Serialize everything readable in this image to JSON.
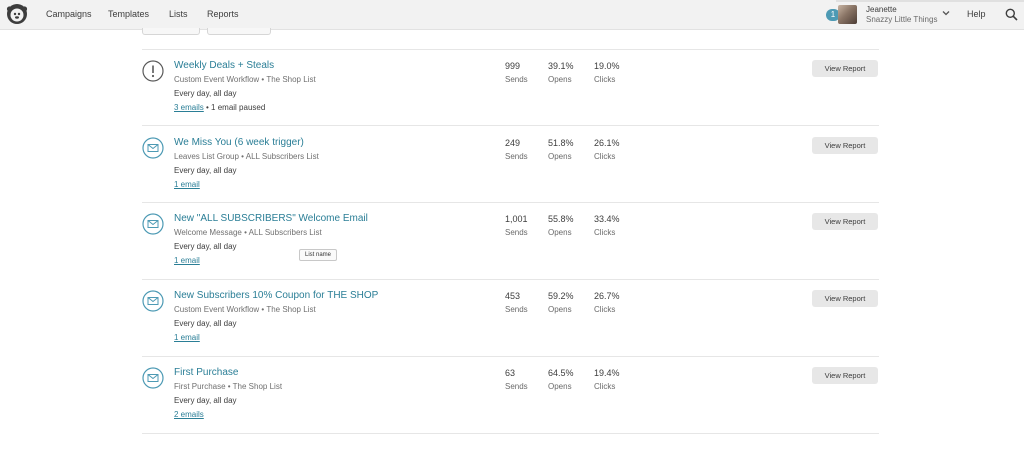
{
  "nav": {
    "items": [
      "Campaigns",
      "Templates",
      "Lists",
      "Reports"
    ],
    "notification_count": "1",
    "user_name": "Jeanette",
    "user_org": "Snazzy Little Things",
    "help_label": "Help"
  },
  "colors": {
    "link": "#2a7e96",
    "badge": "#4d9ab4",
    "button": "#e7e7e7"
  },
  "automations": [
    {
      "icon": "warning-icon",
      "title": "Weekly Deals + Steals",
      "subtitle": "Custom Event Workflow • The Shop List",
      "schedule": "Every day, all day",
      "emails_link": "3 emails",
      "emails_note": " • 1 email paused",
      "sends": "999",
      "sends_label": "Sends",
      "opens": "39.1%",
      "opens_label": "Opens",
      "clicks": "19.0%",
      "clicks_label": "Clicks",
      "button": "View Report"
    },
    {
      "icon": "envelope-icon",
      "title": "We Miss You (6 week trigger)",
      "subtitle": "Leaves List Group • ALL Subscribers List",
      "schedule": "Every day, all day",
      "emails_link": "1 email",
      "emails_note": "",
      "sends": "249",
      "sends_label": "Sends",
      "opens": "51.8%",
      "opens_label": "Opens",
      "clicks": "26.1%",
      "clicks_label": "Clicks",
      "button": "View Report"
    },
    {
      "icon": "envelope-icon",
      "title": "New \"ALL SUBSCRIBERS\" Welcome Email",
      "subtitle": "Welcome Message • ALL Subscribers List",
      "schedule": "Every day, all day",
      "emails_link": "1 email",
      "emails_note": "",
      "sends": "1,001",
      "sends_label": "Sends",
      "opens": "55.8%",
      "opens_label": "Opens",
      "clicks": "33.4%",
      "clicks_label": "Clicks",
      "button": "View Report"
    },
    {
      "icon": "envelope-icon",
      "title": "New Subscribers 10% Coupon for THE SHOP",
      "subtitle": "Custom Event Workflow • The Shop List",
      "schedule": "Every day, all day",
      "emails_link": "1 email",
      "emails_note": "",
      "sends": "453",
      "sends_label": "Sends",
      "opens": "59.2%",
      "opens_label": "Opens",
      "clicks": "26.7%",
      "clicks_label": "Clicks",
      "button": "View Report"
    },
    {
      "icon": "envelope-icon",
      "title": "First Purchase",
      "subtitle": "First Purchase • The Shop List",
      "schedule": "Every day, all day",
      "emails_link": "2 emails",
      "emails_note": "",
      "sends": "63",
      "sends_label": "Sends",
      "opens": "64.5%",
      "opens_label": "Opens",
      "clicks": "19.4%",
      "clicks_label": "Clicks",
      "button": "View Report"
    }
  ],
  "tooltip": "List name"
}
